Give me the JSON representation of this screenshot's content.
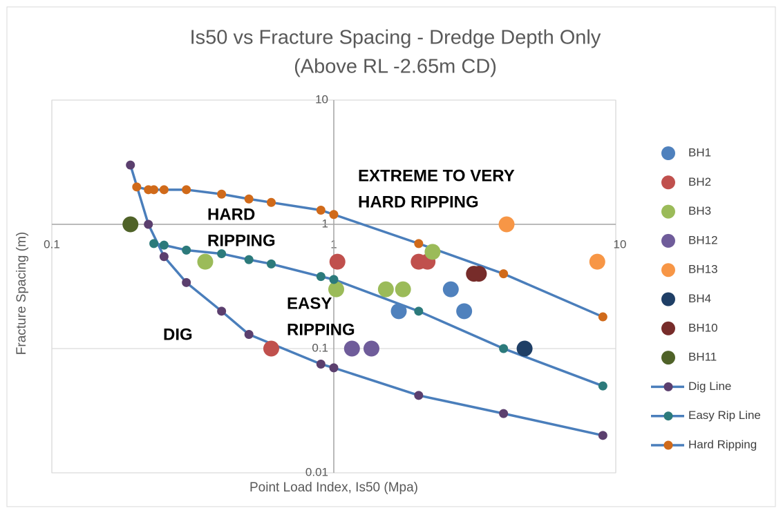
{
  "chart_data": {
    "type": "scatter",
    "title": "Is50 vs Fracture Spacing - Dredge Depth Only",
    "subtitle": "(Above RL -2.65m CD)",
    "x_label": "Point Load Index, Is50 (Mpa)",
    "y_label": "Fracture Spacing (m)",
    "xscale": "log",
    "yscale": "log",
    "xlim": [
      0.1,
      10
    ],
    "ylim": [
      0.01,
      10
    ],
    "xticks": [
      0.1,
      1,
      10
    ],
    "yticks": [
      0.01,
      0.1,
      1,
      10
    ],
    "grid": true,
    "legend": "right",
    "annotations": [
      {
        "lines": [
          "EXTREME TO VERY",
          "HARD RIPPING"
        ]
      },
      {
        "lines": [
          "HARD",
          "RIPPING"
        ]
      },
      {
        "lines": [
          "EASY",
          "RIPPING"
        ]
      },
      {
        "lines": [
          "DIG"
        ]
      }
    ],
    "series": [
      {
        "name": "BH1",
        "color": "#4f81bd",
        "x": [
          1.7,
          2.6,
          2.9
        ],
        "values": [
          0.2,
          0.3,
          0.2
        ]
      },
      {
        "name": "BH2",
        "color": "#c0504d",
        "x": [
          0.6,
          1.03,
          2,
          2.15
        ],
        "values": [
          0.1,
          0.5,
          0.5,
          0.5
        ]
      },
      {
        "name": "BH3",
        "color": "#9bbb59",
        "x": [
          0.35,
          1.02,
          1.53,
          1.76,
          2.24
        ],
        "values": [
          0.5,
          0.3,
          0.3,
          0.3,
          0.6
        ]
      },
      {
        "name": "BH12",
        "color": "#6f5c9a",
        "x": [
          1.16,
          1.36
        ],
        "values": [
          0.1,
          0.1
        ]
      },
      {
        "name": "BH13",
        "color": "#f79646",
        "x": [
          4.1,
          8.6
        ],
        "values": [
          1,
          0.5
        ]
      },
      {
        "name": "BH4",
        "color": "#1f3f66",
        "x": [
          4.75
        ],
        "values": [
          0.1
        ]
      },
      {
        "name": "BH10",
        "color": "#772c2a",
        "x": [
          3.14,
          3.27
        ],
        "values": [
          0.4,
          0.4
        ]
      },
      {
        "name": "BH11",
        "color": "#4f6228",
        "x": [
          0.19
        ],
        "values": [
          1
        ]
      },
      {
        "name": "Dig Line",
        "color": "#4a7ebb",
        "marker_color": "#5b3f6e",
        "line": true,
        "x": [
          0.19,
          0.22,
          0.25,
          0.3,
          0.4,
          0.5,
          0.9,
          1,
          2,
          4,
          9
        ],
        "values": [
          3,
          1,
          0.55,
          0.34,
          0.2,
          0.13,
          0.075,
          0.07,
          0.042,
          0.03,
          0.02
        ]
      },
      {
        "name": "Easy Rip Line",
        "color": "#4a7ebb",
        "marker_color": "#2c7a7b",
        "line": true,
        "x": [
          0.23,
          0.25,
          0.3,
          0.4,
          0.5,
          0.6,
          0.9,
          1,
          2,
          4,
          9
        ],
        "values": [
          0.7,
          0.68,
          0.62,
          0.58,
          0.52,
          0.48,
          0.38,
          0.36,
          0.2,
          0.1,
          0.05
        ]
      },
      {
        "name": "Hard Ripping",
        "color": "#4a7ebb",
        "marker_color": "#d06a1a",
        "line": true,
        "x": [
          0.2,
          0.22,
          0.23,
          0.25,
          0.3,
          0.4,
          0.5,
          0.6,
          0.9,
          1,
          2,
          4,
          9
        ],
        "values": [
          2,
          1.9,
          1.9,
          1.9,
          1.9,
          1.75,
          1.6,
          1.5,
          1.3,
          1.2,
          0.7,
          0.4,
          0.18
        ]
      }
    ]
  }
}
